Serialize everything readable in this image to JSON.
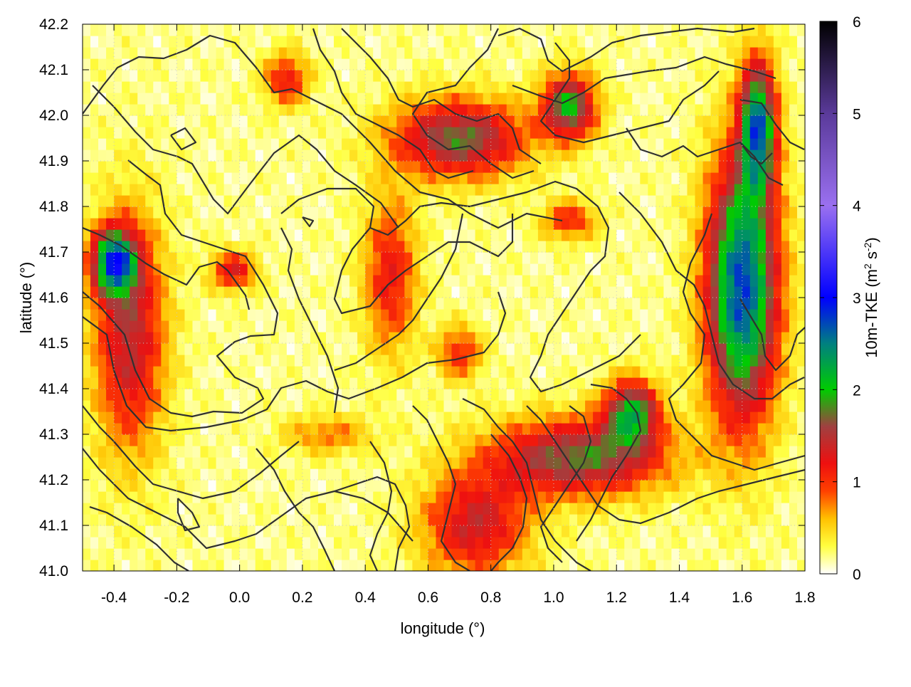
{
  "chart_data": {
    "type": "heatmap",
    "title": "",
    "xlabel": "longitude (°)",
    "ylabel": "latitude (°)",
    "xlim": [
      -0.5,
      1.8
    ],
    "ylim": [
      41.0,
      42.2
    ],
    "xticks": [
      -0.4,
      -0.2,
      0.0,
      0.2,
      0.4,
      0.6,
      0.8,
      1.0,
      1.2,
      1.4,
      1.6,
      1.8
    ],
    "xtick_labels": [
      "-0.4",
      "-0.2",
      "0.0",
      "0.2",
      "0.4",
      "0.6",
      "0.8",
      "1.0",
      "1.2",
      "1.4",
      "1.6",
      "1.8"
    ],
    "yticks": [
      41.0,
      41.1,
      41.2,
      41.3,
      41.4,
      41.5,
      41.6,
      41.7,
      41.8,
      41.9,
      42.0,
      42.1,
      42.2
    ],
    "ytick_labels": [
      "41.0",
      "41.1",
      "41.2",
      "41.3",
      "41.4",
      "41.5",
      "41.6",
      "41.7",
      "41.8",
      "41.9",
      "42.0",
      "42.1",
      "42.2"
    ],
    "grid": true,
    "colorbar": {
      "label": "10m-TKE (m",
      "label_sup1": "2",
      "label_mid": " s",
      "label_sup2": "-2",
      "label_end": ")",
      "range": [
        0,
        6
      ],
      "ticks": [
        0,
        1,
        2,
        3,
        4,
        5,
        6
      ],
      "tick_labels": [
        "0",
        "1",
        "2",
        "3",
        "4",
        "5",
        "6"
      ],
      "stops": [
        {
          "v": 0.0,
          "c": "#ffffff"
        },
        {
          "v": 0.3,
          "c": "#ffff40"
        },
        {
          "v": 0.6,
          "c": "#ffc000"
        },
        {
          "v": 0.9,
          "c": "#ff4000"
        },
        {
          "v": 1.2,
          "c": "#ee1010"
        },
        {
          "v": 1.6,
          "c": "#a04040"
        },
        {
          "v": 2.0,
          "c": "#00cc00"
        },
        {
          "v": 2.5,
          "c": "#008080"
        },
        {
          "v": 3.0,
          "c": "#0000ff"
        },
        {
          "v": 4.0,
          "c": "#9a70f0"
        },
        {
          "v": 5.0,
          "c": "#5a3a9a"
        },
        {
          "v": 6.0,
          "c": "#000000"
        }
      ]
    },
    "field_sources": [
      {
        "lon": -0.35,
        "lat": 41.52,
        "sx": 0.08,
        "sy": 0.18,
        "amp": 1.3
      },
      {
        "lon": -0.4,
        "lat": 41.68,
        "sx": 0.05,
        "sy": 0.05,
        "amp": 2.2
      },
      {
        "lon": -0.02,
        "lat": 41.66,
        "sx": 0.05,
        "sy": 0.03,
        "amp": 1.1
      },
      {
        "lon": 0.48,
        "lat": 41.65,
        "sx": 0.06,
        "sy": 0.12,
        "amp": 1.0
      },
      {
        "lon": 0.7,
        "lat": 41.48,
        "sx": 0.05,
        "sy": 0.04,
        "amp": 0.9
      },
      {
        "lon": 0.7,
        "lat": 41.95,
        "sx": 0.15,
        "sy": 0.06,
        "amp": 1.6
      },
      {
        "lon": 0.15,
        "lat": 42.08,
        "sx": 0.05,
        "sy": 0.04,
        "amp": 1.0
      },
      {
        "lon": 1.05,
        "lat": 42.02,
        "sx": 0.06,
        "sy": 0.05,
        "amp": 1.8
      },
      {
        "lon": 1.6,
        "lat": 41.62,
        "sx": 0.08,
        "sy": 0.2,
        "amp": 2.6
      },
      {
        "lon": 1.65,
        "lat": 41.98,
        "sx": 0.04,
        "sy": 0.1,
        "amp": 2.2
      },
      {
        "lon": 1.08,
        "lat": 41.25,
        "sx": 0.2,
        "sy": 0.06,
        "amp": 1.6
      },
      {
        "lon": 1.25,
        "lat": 41.35,
        "sx": 0.06,
        "sy": 0.05,
        "amp": 1.8
      },
      {
        "lon": 0.75,
        "lat": 41.1,
        "sx": 0.12,
        "sy": 0.08,
        "amp": 1.2
      },
      {
        "lon": 1.05,
        "lat": 41.77,
        "sx": 0.06,
        "sy": 0.03,
        "amp": 0.9
      },
      {
        "lon": 0.28,
        "lat": 41.3,
        "sx": 0.1,
        "sy": 0.03,
        "amp": 0.6
      }
    ]
  }
}
